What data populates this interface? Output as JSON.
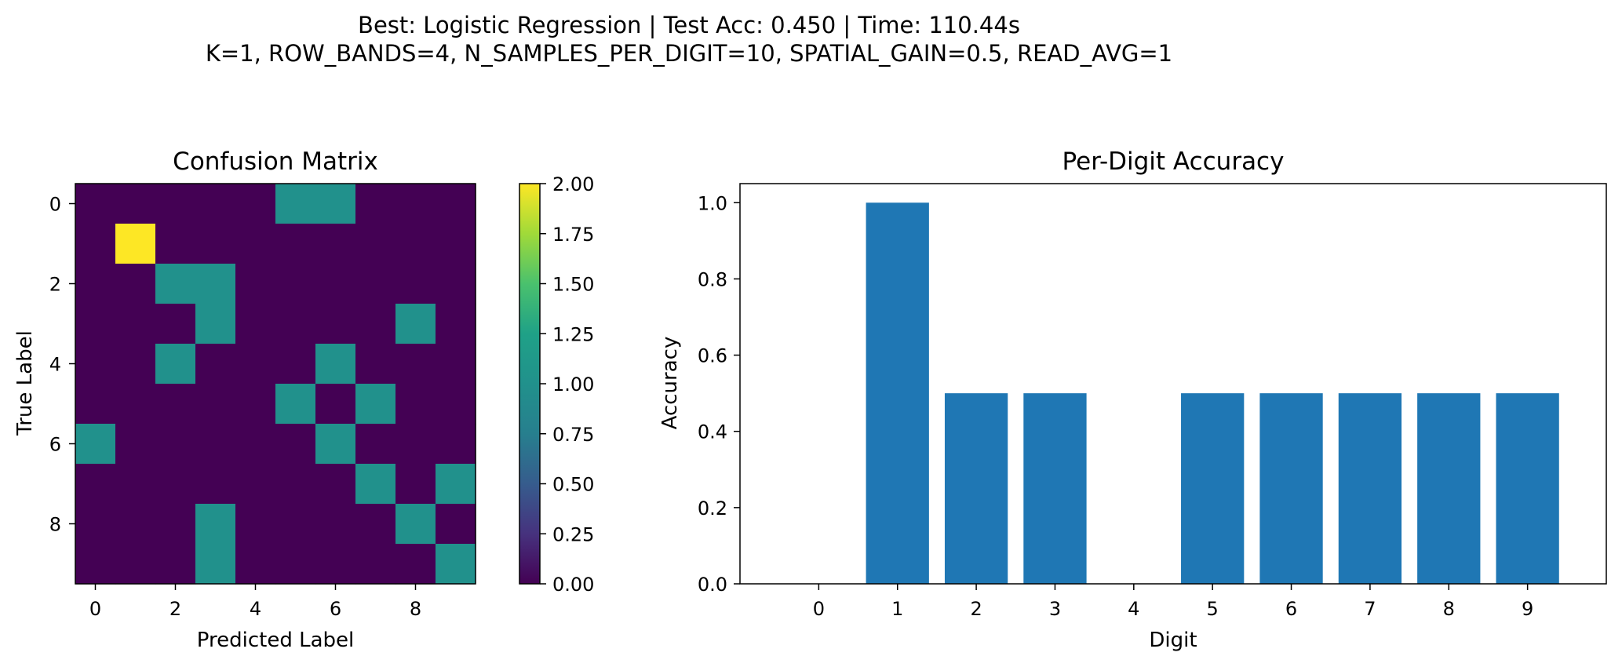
{
  "suptitle": {
    "line1": "Best: Logistic Regression  |  Test Acc: 0.450  |  Time: 110.44s",
    "line2": "K=1, ROW_BANDS=4, N_SAMPLES_PER_DIGIT=10, SPATIAL_GAIN=0.5, READ_AVG=1"
  },
  "chart_data": [
    {
      "type": "heatmap",
      "title": "Confusion Matrix",
      "xlabel": "Predicted Label",
      "ylabel": "True Label",
      "x_ticks": [
        "0",
        "2",
        "4",
        "6",
        "8"
      ],
      "y_ticks": [
        "0",
        "2",
        "4",
        "6",
        "8"
      ],
      "matrix": [
        [
          0,
          0,
          0,
          0,
          0,
          1,
          1,
          0,
          0,
          0
        ],
        [
          0,
          2,
          0,
          0,
          0,
          0,
          0,
          0,
          0,
          0
        ],
        [
          0,
          0,
          1,
          1,
          0,
          0,
          0,
          0,
          0,
          0
        ],
        [
          0,
          0,
          0,
          1,
          0,
          0,
          0,
          0,
          1,
          0
        ],
        [
          0,
          0,
          1,
          0,
          0,
          0,
          1,
          0,
          0,
          0
        ],
        [
          0,
          0,
          0,
          0,
          0,
          1,
          0,
          1,
          0,
          0
        ],
        [
          1,
          0,
          0,
          0,
          0,
          0,
          1,
          0,
          0,
          0
        ],
        [
          0,
          0,
          0,
          0,
          0,
          0,
          0,
          1,
          0,
          1
        ],
        [
          0,
          0,
          0,
          1,
          0,
          0,
          0,
          0,
          1,
          0
        ],
        [
          0,
          0,
          0,
          1,
          0,
          0,
          0,
          0,
          0,
          1
        ]
      ],
      "colormap": "viridis",
      "vmin": 0,
      "vmax": 2,
      "colorbar_ticks": [
        "0.00",
        "0.25",
        "0.50",
        "0.75",
        "1.00",
        "1.25",
        "1.50",
        "1.75",
        "2.00"
      ],
      "grid": false
    },
    {
      "type": "bar",
      "title": "Per-Digit Accuracy",
      "xlabel": "Digit",
      "ylabel": "Accuracy",
      "categories": [
        "0",
        "1",
        "2",
        "3",
        "4",
        "5",
        "6",
        "7",
        "8",
        "9"
      ],
      "values": [
        0.0,
        1.0,
        0.5,
        0.5,
        0.0,
        0.5,
        0.5,
        0.5,
        0.5,
        0.5
      ],
      "ylim": [
        0,
        1.05
      ],
      "y_ticks": [
        "0.0",
        "0.2",
        "0.4",
        "0.6",
        "0.8",
        "1.0"
      ],
      "bar_color": "#1f77b4",
      "grid": false
    }
  ]
}
